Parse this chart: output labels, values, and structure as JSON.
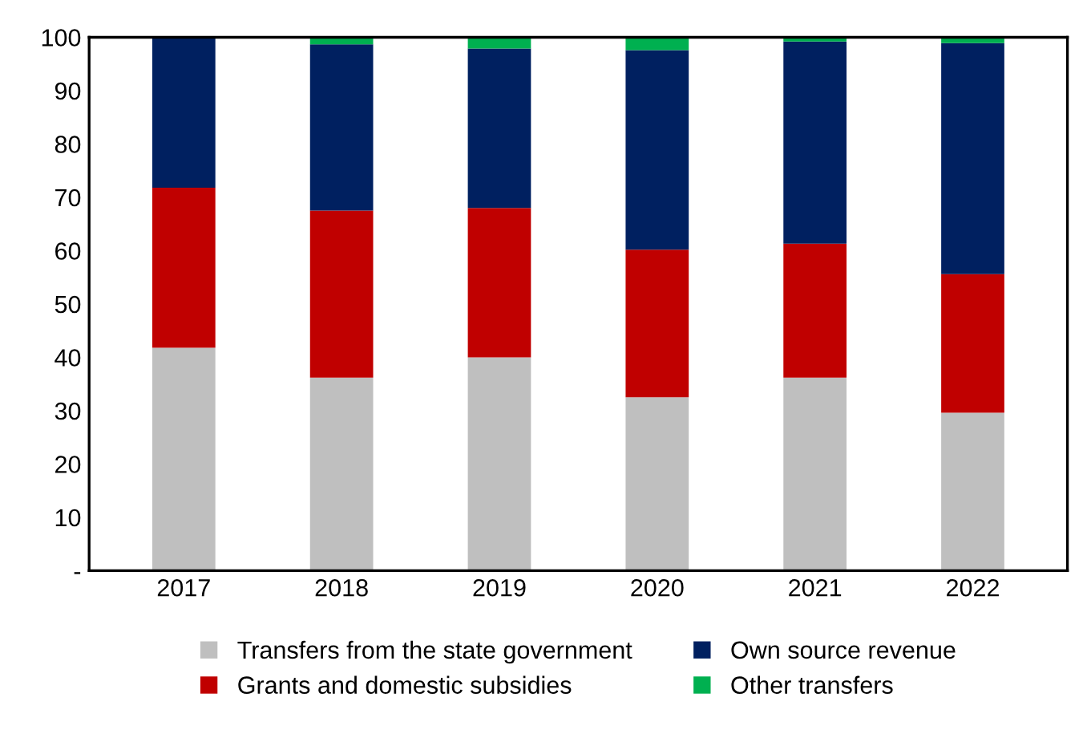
{
  "chart_data": {
    "type": "bar",
    "stacked": true,
    "categories": [
      "2017",
      "2018",
      "2019",
      "2020",
      "2021",
      "2022"
    ],
    "series": [
      {
        "name": "Transfers from the state government",
        "color": "#bfbfbf",
        "values": [
          41.8,
          36.2,
          40.0,
          32.5,
          36.2,
          29.6
        ]
      },
      {
        "name": "Grants and domestic subsidies",
        "color": "#c00000",
        "values": [
          30.0,
          31.3,
          28.0,
          27.7,
          25.1,
          26.0
        ]
      },
      {
        "name": "Own source revenue",
        "color": "#002060",
        "values": [
          28.2,
          31.2,
          29.9,
          37.4,
          37.9,
          43.3
        ]
      },
      {
        "name": "Other transfers",
        "color": "#00b050",
        "values": [
          0,
          1.3,
          2.1,
          2.4,
          0.8,
          1.1
        ]
      }
    ],
    "ylim": [
      0,
      100
    ],
    "yticks": [
      {
        "value": 0,
        "label": "-"
      },
      10,
      20,
      30,
      40,
      50,
      60,
      70,
      80,
      90,
      100
    ],
    "grid": false,
    "legend": "bottom"
  }
}
